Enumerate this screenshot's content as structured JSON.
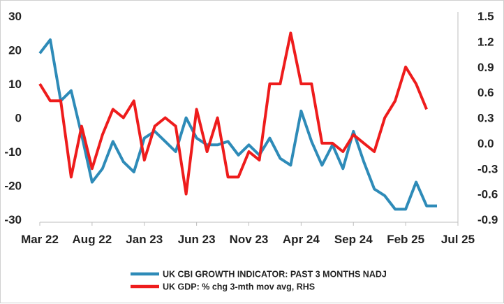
{
  "chart_data": {
    "type": "line",
    "x_tick_labels": [
      "Mar 22",
      "Aug 22",
      "Jan 23",
      "Jun 23",
      "Nov 23",
      "Apr 24",
      "Sep 24",
      "Feb 25",
      "Jul 25"
    ],
    "y_left": {
      "ticks": [
        "30",
        "20",
        "10",
        "0",
        "-10",
        "-20",
        "-30"
      ],
      "ylim": [
        -30,
        30
      ]
    },
    "y_right": {
      "ticks": [
        "1.5",
        "1.2",
        "0.9",
        "0.6",
        "0.3",
        "0.0",
        "-0.3",
        "-0.6",
        "-0.9"
      ],
      "ylim": [
        -0.9,
        1.5
      ]
    },
    "grid": false,
    "legend_position": "bottom",
    "series": [
      {
        "name": "UK CBI GROWTH INDICATOR: PAST 3 MONTHS NADJ",
        "axis": "left",
        "color": "#2e8bb8",
        "x": [
          "Mar 22",
          "Apr 22",
          "May 22",
          "Jun 22",
          "Jul 22",
          "Aug 22",
          "Sep 22",
          "Oct 22",
          "Nov 22",
          "Dec 22",
          "Jan 23",
          "Feb 23",
          "Mar 23",
          "Apr 23",
          "May 23",
          "Jun 23",
          "Jul 23",
          "Aug 23",
          "Sep 23",
          "Oct 23",
          "Nov 23",
          "Dec 23",
          "Jan 24",
          "Feb 24",
          "Mar 24",
          "Apr 24",
          "May 24",
          "Jun 24",
          "Jul 24",
          "Aug 24",
          "Sep 24",
          "Oct 24",
          "Nov 24",
          "Dec 24",
          "Jan 25",
          "Feb 25",
          "Mar 25",
          "Apr 25",
          "May 25"
        ],
        "values": [
          19,
          23,
          5,
          8,
          -5,
          -19,
          -15,
          -7,
          -13,
          -16,
          -6,
          -4,
          -7,
          -10,
          0,
          -6,
          -8,
          -8,
          -7,
          -11,
          -8,
          -11,
          -6,
          -12,
          -14,
          2,
          -7,
          -14,
          -8,
          -15,
          -4,
          -13,
          -21,
          -23,
          -27,
          -27,
          -19,
          -26,
          -26
        ]
      },
      {
        "name": "UK GDP: % chg 3-mth mov avg, RHS",
        "axis": "right",
        "color": "#ee1c1c",
        "x": [
          "Mar 22",
          "Apr 22",
          "May 22",
          "Jun 22",
          "Jul 22",
          "Aug 22",
          "Sep 22",
          "Oct 22",
          "Nov 22",
          "Dec 22",
          "Jan 23",
          "Feb 23",
          "Mar 23",
          "Apr 23",
          "May 23",
          "Jun 23",
          "Jul 23",
          "Aug 23",
          "Sep 23",
          "Oct 23",
          "Nov 23",
          "Dec 23",
          "Jan 24",
          "Feb 24",
          "Mar 24",
          "Apr 24",
          "May 24",
          "Jun 24",
          "Jul 24",
          "Aug 24",
          "Sep 24",
          "Oct 24",
          "Nov 24",
          "Dec 24",
          "Jan 25",
          "Feb 25",
          "Mar 25",
          "Apr 25"
        ],
        "values": [
          0.7,
          0.5,
          0.5,
          -0.4,
          0.2,
          -0.3,
          0.1,
          0.4,
          0.3,
          0.5,
          -0.2,
          0.2,
          0.3,
          0.2,
          -0.6,
          0.4,
          -0.1,
          0.3,
          -0.4,
          -0.4,
          -0.1,
          -0.2,
          0.7,
          0.7,
          1.3,
          0.7,
          0.7,
          0.0,
          0.0,
          -0.1,
          0.1,
          0.0,
          -0.1,
          0.3,
          0.5,
          0.9,
          0.7,
          0.4
        ]
      }
    ]
  }
}
